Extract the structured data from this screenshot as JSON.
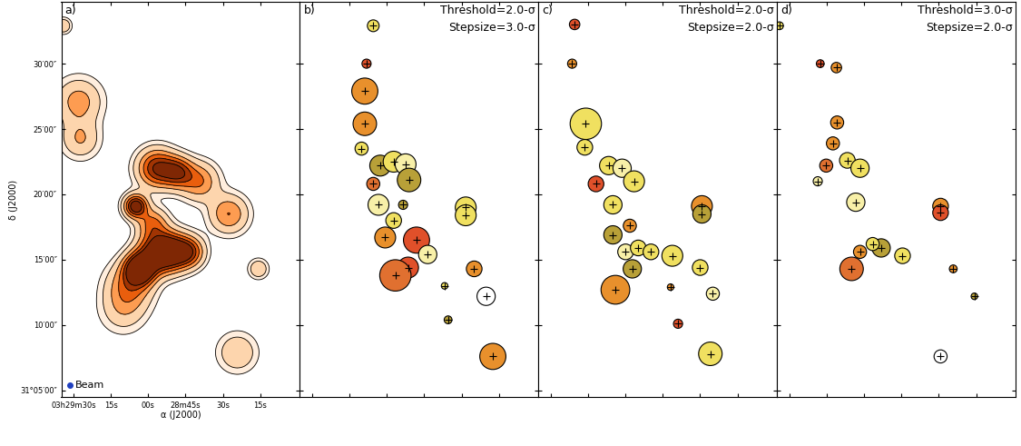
{
  "chart_data": [
    {
      "type": "contour",
      "label": "a)",
      "xlabel": "α (J2000)",
      "ylabel": "δ (J2000)",
      "xlim": [
        12575,
        12479
      ],
      "ylim": [
        1864.5,
        1894.7
      ],
      "xticks": [
        {
          "value": 12570,
          "label": "03h29m30s"
        },
        {
          "value": 12555,
          "label": "15s"
        },
        {
          "value": 12540,
          "label": "00s"
        },
        {
          "value": 12525,
          "label": "28m45s"
        },
        {
          "value": 12510,
          "label": "30s"
        },
        {
          "value": 12495,
          "label": "15s"
        }
      ],
      "yticks": [
        {
          "value": 1865,
          "label": "31°05′00″"
        },
        {
          "value": 1870,
          "label": "10′00″"
        },
        {
          "value": 1875,
          "label": "15′00″"
        },
        {
          "value": 1880,
          "label": "20′00″"
        },
        {
          "value": 1885,
          "label": "25′00″"
        },
        {
          "value": 1890,
          "label": "30′00″"
        }
      ],
      "tick_labels": true,
      "levels": [
        0.5,
        1,
        2,
        3,
        4,
        5
      ],
      "sources": [
        {
          "x": 12574.1,
          "y": 1892.9,
          "peak": 2,
          "radius": 0.4
        },
        {
          "x": 12568.0,
          "y": 1887.1,
          "peak": 2.5,
          "radius": 1.2
        },
        {
          "x": 12567.3,
          "y": 1884.2,
          "peak": 2,
          "radius": 1.0
        },
        {
          "x": 12536.6,
          "y": 1882.0,
          "peak": 5,
          "radius": 1.0
        },
        {
          "x": 12528.1,
          "y": 1881.7,
          "peak": 4,
          "radius": 0.8
        },
        {
          "x": 12519.5,
          "y": 1881.0,
          "peak": 3,
          "radius": 1.0
        },
        {
          "x": 12545.1,
          "y": 1879.1,
          "peak": 6,
          "radius": 0.6
        },
        {
          "x": 12538.3,
          "y": 1877.8,
          "peak": 3,
          "radius": 0.8
        },
        {
          "x": 12507.6,
          "y": 1878.5,
          "peak": 3,
          "radius": 1.0
        },
        {
          "x": 12537.3,
          "y": 1875.6,
          "peak": 4,
          "radius": 1.0
        },
        {
          "x": 12531.5,
          "y": 1875.6,
          "peak": 6,
          "radius": 1.0
        },
        {
          "x": 12523.6,
          "y": 1875.6,
          "peak": 4,
          "radius": 0.8
        },
        {
          "x": 12543.4,
          "y": 1874.3,
          "peak": 7,
          "radius": 0.8
        },
        {
          "x": 12547.5,
          "y": 1873.0,
          "peak": 3,
          "radius": 1.2
        },
        {
          "x": 12495.7,
          "y": 1874.3,
          "peak": 2,
          "radius": 0.5
        },
        {
          "x": 12504.2,
          "y": 1867.9,
          "peak": 2,
          "radius": 1.0
        },
        {
          "x": 12550.2,
          "y": 1871.1,
          "peak": 1.5,
          "radius": 1.2
        }
      ],
      "annotations": [
        "Beam"
      ]
    },
    {
      "type": "scatter",
      "label": "b)",
      "marker": "+",
      "xlim": [
        12575,
        12479
      ],
      "ylim": [
        1864.5,
        1894.7
      ],
      "xticks": [
        {
          "value": 12570,
          "label": "03h29m30s"
        },
        {
          "value": 12555,
          "label": "15s"
        },
        {
          "value": 12540,
          "label": "00s"
        },
        {
          "value": 12525,
          "label": "28m45s"
        },
        {
          "value": 12510,
          "label": "30s"
        },
        {
          "value": 12495,
          "label": "15s"
        }
      ],
      "yticks": [
        {
          "value": 1865,
          "label": "31°05′00″"
        },
        {
          "value": 1870,
          "label": "10′00″"
        },
        {
          "value": 1875,
          "label": "15′00″"
        },
        {
          "value": 1880,
          "label": "20′00″"
        },
        {
          "value": 1885,
          "label": "25′00″"
        },
        {
          "value": 1890,
          "label": "30′00″"
        }
      ],
      "tick_labels": false,
      "annotations": [
        "Threshold=2.0-σ",
        "Stepsize=3.0-σ"
      ],
      "x": [
        12545.5,
        12548.2,
        12548.9,
        12548.9,
        12550.2,
        12542.7,
        12537.3,
        12532.5,
        12531.1,
        12545.5,
        12543.4,
        12533.5,
        12537.3,
        12540.7,
        12528.1,
        12523.6,
        12531.5,
        12536.6,
        12508.3,
        12508.3,
        12504.9,
        12516.8,
        12515.4,
        12497.4,
        12500.1
      ],
      "y": [
        1892.9,
        1890.0,
        1887.9,
        1885.4,
        1883.5,
        1882.2,
        1882.5,
        1882.3,
        1881.1,
        1880.8,
        1879.2,
        1879.2,
        1878.0,
        1876.7,
        1876.5,
        1875.4,
        1874.4,
        1873.8,
        1879.0,
        1878.4,
        1874.3,
        1873.0,
        1870.4,
        1867.6,
        1872.2
      ],
      "radius": [
        0.45,
        0.35,
        1.0,
        0.9,
        0.5,
        0.8,
        0.8,
        0.8,
        0.9,
        0.5,
        0.8,
        0.35,
        0.6,
        0.8,
        1.0,
        0.7,
        0.8,
        1.2,
        0.8,
        0.8,
        0.6,
        0.25,
        0.3,
        1.0,
        0.7
      ],
      "colors": [
        "#f0e060",
        "#e0502a",
        "#e8902c",
        "#e8902c",
        "#f0e060",
        "#b8a038",
        "#f0e060",
        "#f8f0a8",
        "#b8a038",
        "#e07030",
        "#f8f0a8",
        "#b8a038",
        "#f0e060",
        "#e8902c",
        "#e0502a",
        "#f8f0a8",
        "#e0502a",
        "#e07030",
        "#f0e060",
        "#f0e060",
        "#e8902c",
        "#f0e060",
        "#b8a038",
        "#e8902c",
        "#ffffff"
      ]
    },
    {
      "type": "scatter",
      "label": "c)",
      "marker": "+",
      "xlim": [
        12575,
        12479
      ],
      "ylim": [
        1864.5,
        1894.7
      ],
      "xticks": [
        {
          "value": 12570,
          "label": "03h29m30s"
        },
        {
          "value": 12555,
          "label": "15s"
        },
        {
          "value": 12540,
          "label": "00s"
        },
        {
          "value": 12525,
          "label": "28m45s"
        },
        {
          "value": 12510,
          "label": "30s"
        },
        {
          "value": 12495,
          "label": "15s"
        }
      ],
      "yticks": [
        {
          "value": 1865,
          "label": "31°05′00″"
        },
        {
          "value": 1870,
          "label": "10′00″"
        },
        {
          "value": 1875,
          "label": "15′00″"
        },
        {
          "value": 1880,
          "label": "20′00″"
        },
        {
          "value": 1885,
          "label": "25′00″"
        },
        {
          "value": 1890,
          "label": "30′00″"
        }
      ],
      "tick_labels": false,
      "annotations": [
        "Threshold=2.0-σ",
        "Stepsize=2.0-σ"
      ],
      "x": [
        12560.5,
        12561.5,
        12556.0,
        12556.4,
        12546.8,
        12541.4,
        12536.6,
        12551.9,
        12545.1,
        12545.1,
        12538.3,
        12540.0,
        12534.9,
        12529.8,
        12521.2,
        12537.3,
        12544.1,
        12509.3,
        12509.3,
        12510.0,
        12521.9,
        12504.9,
        12518.9,
        12505.9
      ],
      "y": [
        1893.0,
        1890.0,
        1885.4,
        1883.6,
        1882.2,
        1882.0,
        1881.0,
        1880.8,
        1879.2,
        1876.9,
        1877.6,
        1875.6,
        1875.9,
        1875.6,
        1875.3,
        1874.3,
        1872.7,
        1879.1,
        1878.5,
        1874.4,
        1872.9,
        1872.4,
        1870.1,
        1867.8
      ],
      "radius": [
        0.4,
        0.35,
        1.2,
        0.6,
        0.7,
        0.7,
        0.8,
        0.6,
        0.7,
        0.7,
        0.5,
        0.6,
        0.6,
        0.6,
        0.8,
        0.7,
        1.1,
        0.8,
        0.7,
        0.6,
        0.25,
        0.5,
        0.35,
        0.9
      ],
      "colors": [
        "#e0502a",
        "#e8902c",
        "#f0e060",
        "#f0e060",
        "#f0e060",
        "#f8f0a8",
        "#f0e060",
        "#e0502a",
        "#f0e060",
        "#b8a038",
        "#e8902c",
        "#f8f0a8",
        "#f0e060",
        "#f0e060",
        "#f0e060",
        "#b8a038",
        "#e8902c",
        "#e8902c",
        "#b8a038",
        "#f0e060",
        "#e8902c",
        "#f8f0a8",
        "#e0502a",
        "#f0e060"
      ]
    },
    {
      "type": "scatter",
      "label": "d)",
      "marker": "+",
      "xlim": [
        12575,
        12479
      ],
      "ylim": [
        1864.5,
        1894.7
      ],
      "xticks": [
        {
          "value": 12570,
          "label": "03h29m30s"
        },
        {
          "value": 12555,
          "label": "15s"
        },
        {
          "value": 12540,
          "label": "00s"
        },
        {
          "value": 12525,
          "label": "28m45s"
        },
        {
          "value": 12510,
          "label": "30s"
        },
        {
          "value": 12495,
          "label": "15s"
        }
      ],
      "yticks": [
        {
          "value": 1865,
          "label": "31°05′00″"
        },
        {
          "value": 1870,
          "label": "10′00″"
        },
        {
          "value": 1875,
          "label": "15′00″"
        },
        {
          "value": 1880,
          "label": "20′00″"
        },
        {
          "value": 1885,
          "label": "25′00″"
        },
        {
          "value": 1890,
          "label": "30′00″"
        }
      ],
      "tick_labels": false,
      "annotations": [
        "Threshold=3.0-σ",
        "Stepsize=2.0-σ"
      ],
      "x": [
        12574.1,
        12557.7,
        12551.2,
        12550.9,
        12552.6,
        12555.3,
        12546.8,
        12541.7,
        12558.7,
        12543.4,
        12533.2,
        12536.6,
        12541.7,
        12545.1,
        12524.6,
        12509.3,
        12509.3,
        12504.2,
        12495.7,
        12509.3
      ],
      "y": [
        1892.9,
        1890.0,
        1889.7,
        1885.5,
        1883.9,
        1882.2,
        1882.6,
        1882.0,
        1881.0,
        1879.4,
        1875.9,
        1876.2,
        1875.6,
        1874.3,
        1875.3,
        1879.1,
        1878.6,
        1874.3,
        1872.2,
        1867.6
      ],
      "radius": [
        0.3,
        0.3,
        0.4,
        0.5,
        0.5,
        0.5,
        0.6,
        0.7,
        0.35,
        0.7,
        0.7,
        0.5,
        0.5,
        0.9,
        0.6,
        0.6,
        0.6,
        0.3,
        0.25,
        0.5
      ],
      "colors": [
        "#f0e060",
        "#e0502a",
        "#e8902c",
        "#e8902c",
        "#e8902c",
        "#e07030",
        "#f0e060",
        "#f0e060",
        "#f8f0a8",
        "#f8f0a8",
        "#b8a038",
        "#f0e060",
        "#e8902c",
        "#e07030",
        "#f0e060",
        "#e8902c",
        "#e0502a",
        "#e8902c",
        "#b8a038",
        "#ffffff"
      ]
    }
  ]
}
